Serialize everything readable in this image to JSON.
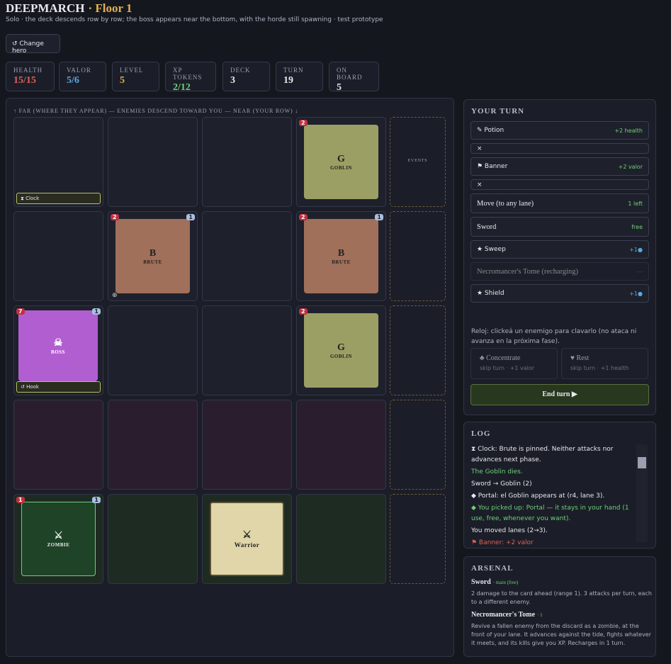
{
  "header": {
    "title": "DEEPMARCH",
    "floor": "· Floor 1",
    "subtitle": "Solo · the deck descends row by row; the boss appears near the bottom, with the horde still spawning · test prototype",
    "change_hero": "↺ Change hero"
  },
  "stats": [
    {
      "label": "HEALTH",
      "value": "15/15",
      "color": "#e0605a"
    },
    {
      "label": "VALOR",
      "value": "5/6",
      "color": "#5aa7e0"
    },
    {
      "label": "LEVEL",
      "value": 5,
      "color": "#e0b050"
    },
    {
      "label": "XP TOKENS",
      "value": "2/12",
      "color": "#6fd07a"
    },
    {
      "label": "DECK",
      "value": 3,
      "color": "#e8e8ee"
    },
    {
      "label": "TURN",
      "value": 19,
      "color": "#e8e8ee"
    },
    {
      "label": "ON BOARD",
      "value": 5,
      "color": "#e8e8ee"
    }
  ],
  "board": {
    "caption": "↑ FAR (WHERE THEY APPEAR) — ENEMIES DESCEND TOWARD YOU — NEAR (YOUR ROW) ↓",
    "events": "EVENTS",
    "rows": [
      [
        {
          "tag": "⧗ Clock"
        },
        null,
        null,
        {
          "letter": "G",
          "name": "GOBLIN",
          "hp": 2,
          "color": "#9b9f64"
        }
      ],
      [
        null,
        {
          "letter": "B",
          "name": "BRUTE",
          "hp": 2,
          "shield": 1,
          "color": "#a0705a",
          "pin": "⊕"
        },
        null,
        {
          "letter": "B",
          "name": "BRUTE",
          "hp": 2,
          "shield": 1,
          "color": "#a0705a"
        }
      ],
      [
        {
          "letter": "☠",
          "name": "BOSS",
          "hp": 7,
          "shield": 1,
          "color": "#b15fd0",
          "tag": "↺ Hook"
        },
        null,
        null,
        {
          "letter": "G",
          "name": "GOBLIN",
          "hp": 2,
          "color": "#9b9f64"
        }
      ],
      [
        null,
        null,
        null,
        null
      ],
      [
        {
          "letter": "⚔",
          "name": "ZOMBIE",
          "hp": 1,
          "shield": 1,
          "color": "#1e4326"
        },
        null,
        {
          "letter": "⚔",
          "name": "Warrior",
          "color": "#e0d6aa"
        },
        null
      ]
    ]
  },
  "turn": {
    "title": "YOUR TURN",
    "actions": [
      {
        "label": "✎ Potion",
        "note": "+2 health",
        "color": "#6fd07a"
      },
      {
        "label": "×"
      },
      {
        "label": "⚑ Banner",
        "note": "+2 valor",
        "color": "#6fd07a"
      },
      {
        "label": "×"
      },
      {
        "label": "Move (to any lane)",
        "note": "1 left",
        "color": "#6fd07a"
      },
      {
        "label": "Sword",
        "note": "free",
        "color": "#6fd07a"
      },
      {
        "label": "★ Sweep",
        "note": "+1●",
        "color": "#5aa7e0"
      },
      {
        "label": "Necromancer's Tome (recharging)",
        "note": "—",
        "color": "#666"
      },
      {
        "label": "★ Shield",
        "note": "+1●",
        "color": "#5aa7e0"
      }
    ],
    "hint": "Reloj: clickeá un enemigo para clavarlo (no ataca ni avanza en la próxima fase).",
    "choices": [
      {
        "label": "♣ Concentrate",
        "sub": "skip turn · +1 valor"
      },
      {
        "label": "♥ Rest",
        "sub": "skip turn · +1 health"
      }
    ],
    "end_turn": "End turn ▶"
  },
  "log": {
    "title": "LOG",
    "entries": [
      {
        "text": "⧗ Clock: Brute is pinned. Neither attacks nor advances next phase.",
        "color": "#e8e8ee"
      },
      {
        "text": "The Goblin dies.",
        "color": "#6fd07a"
      },
      {
        "text": "Sword → Goblin (2)",
        "color": "#e8e8ee"
      },
      {
        "text": "◆ Portal: el Goblin appears at (r4, lane 3).",
        "color": "#e8e8ee"
      },
      {
        "text": "◆ You picked up: Portal — it stays in your hand (1 use, free, whenever you want).",
        "color": "#6fd07a"
      },
      {
        "text": "You moved lanes (2→3).",
        "color": "#e8e8ee"
      },
      {
        "text": "⚑ Banner: +2 valor",
        "color": "#e0605a"
      }
    ]
  },
  "arsenal": {
    "title": "ARSENAL",
    "items": [
      {
        "name": "Sword",
        "meta": "· main (free)",
        "desc": "2 damage to the card ahead (range 1). 3 attacks per turn, each to a different enemy."
      },
      {
        "name": "Necromancer's Tome",
        "meta": "· 1",
        "desc": "Revive a fallen enemy from the discard as a zombie, at the front of your lane. It advances against the tide, fights whatever it meets, and its kills give you XP. Recharges in 1 turn."
      }
    ]
  }
}
